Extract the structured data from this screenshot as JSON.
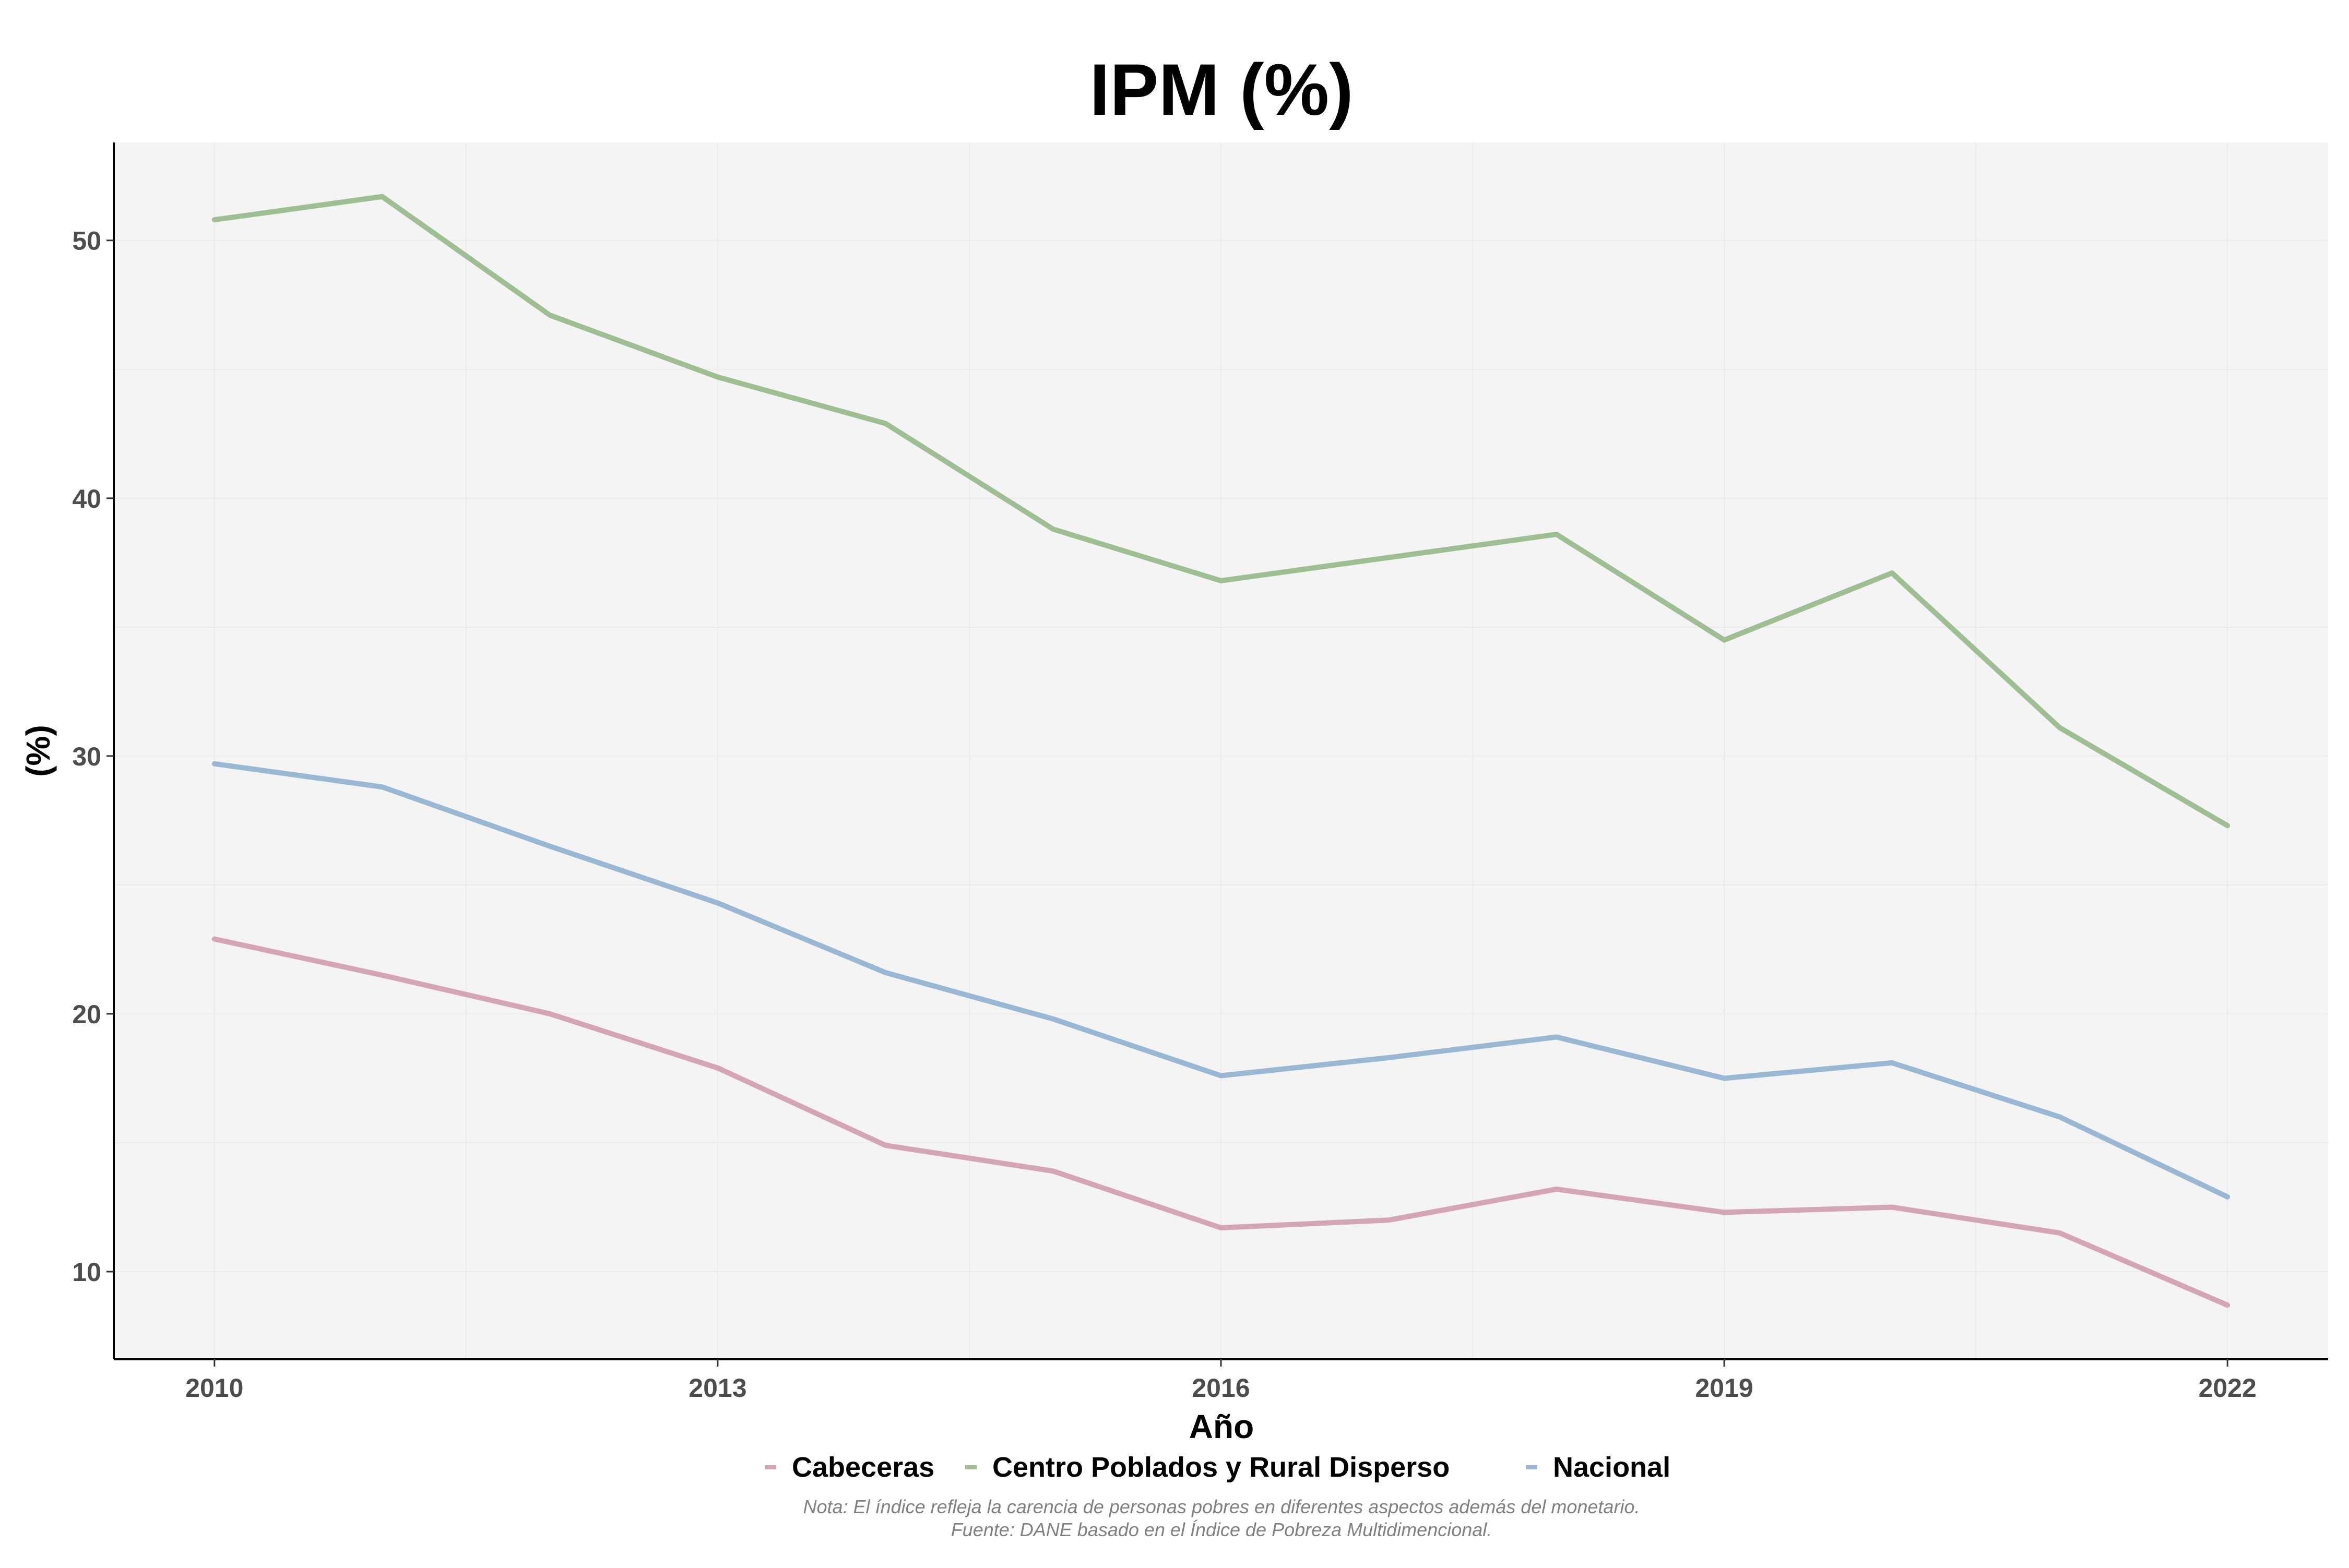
{
  "chart_data": {
    "type": "line",
    "title": "IPM (%)",
    "xlabel": "Año",
    "ylabel": "(%)",
    "x": [
      2010,
      2011,
      2012,
      2013,
      2014,
      2015,
      2016,
      2017,
      2018,
      2019,
      2020,
      2021,
      2022
    ],
    "xticks": [
      "2010",
      "2013",
      "2016",
      "2019",
      "2022"
    ],
    "xtick_values": [
      2010,
      2013,
      2016,
      2019,
      2022
    ],
    "yticks": [
      "10",
      "20",
      "30",
      "40",
      "50"
    ],
    "ytick_values": [
      10,
      20,
      30,
      40,
      50
    ],
    "xlim": [
      2009.4,
      2022.6
    ],
    "ylim": [
      6.6,
      53.8
    ],
    "grid": true,
    "legend_position": "bottom",
    "series": [
      {
        "name": "Cabeceras",
        "color": "#d4a6b3",
        "values": [
          22.9,
          21.5,
          20.0,
          17.9,
          14.9,
          13.9,
          11.7,
          12.0,
          13.2,
          12.3,
          12.5,
          11.5,
          8.7
        ]
      },
      {
        "name": "Centro Poblados y Rural Disperso",
        "color": "#9dbf91",
        "values": [
          50.8,
          51.7,
          47.1,
          44.7,
          42.9,
          38.8,
          36.8,
          37.7,
          38.6,
          34.5,
          37.1,
          31.1,
          27.3
        ]
      },
      {
        "name": "Nacional",
        "color": "#98b8d3",
        "values": [
          29.7,
          28.8,
          26.5,
          24.3,
          21.6,
          19.8,
          17.6,
          18.3,
          19.1,
          17.5,
          18.1,
          16.0,
          12.9
        ]
      }
    ],
    "note_line1": "Nota: El índice refleja la carencia de personas pobres en diferentes aspectos además del monetario.",
    "note_line2": "Fuente: DANE basado en el Índice de Pobreza Multidimencional."
  }
}
